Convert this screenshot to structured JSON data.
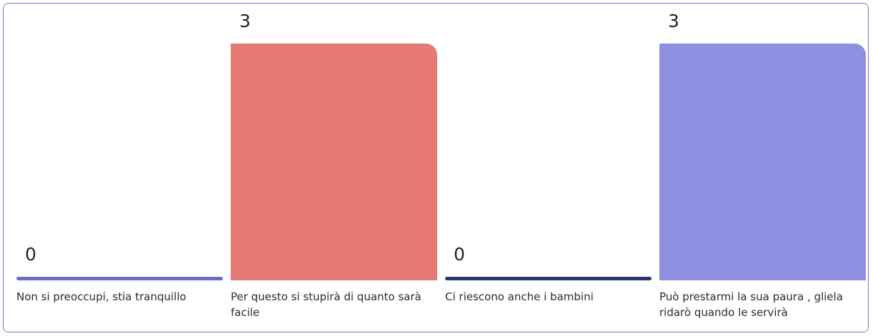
{
  "chart_data": {
    "type": "bar",
    "categories": [
      "Non si preoccupi, stia tranquillo",
      "Per questo si stupirà di quanto sarà facile",
      "Ci riescono anche i bambini",
      "Può prestarmi la sua paura , gliela ridarò quando le servirà"
    ],
    "values": [
      0,
      3,
      0,
      3
    ],
    "value_labels": [
      "0",
      "3",
      "0",
      "3"
    ],
    "colors": [
      "#6b68d0",
      "#e57b74",
      "#2c3372",
      "#9090e2"
    ],
    "ylim": [
      0,
      3
    ],
    "grid": false,
    "legend": "none"
  }
}
